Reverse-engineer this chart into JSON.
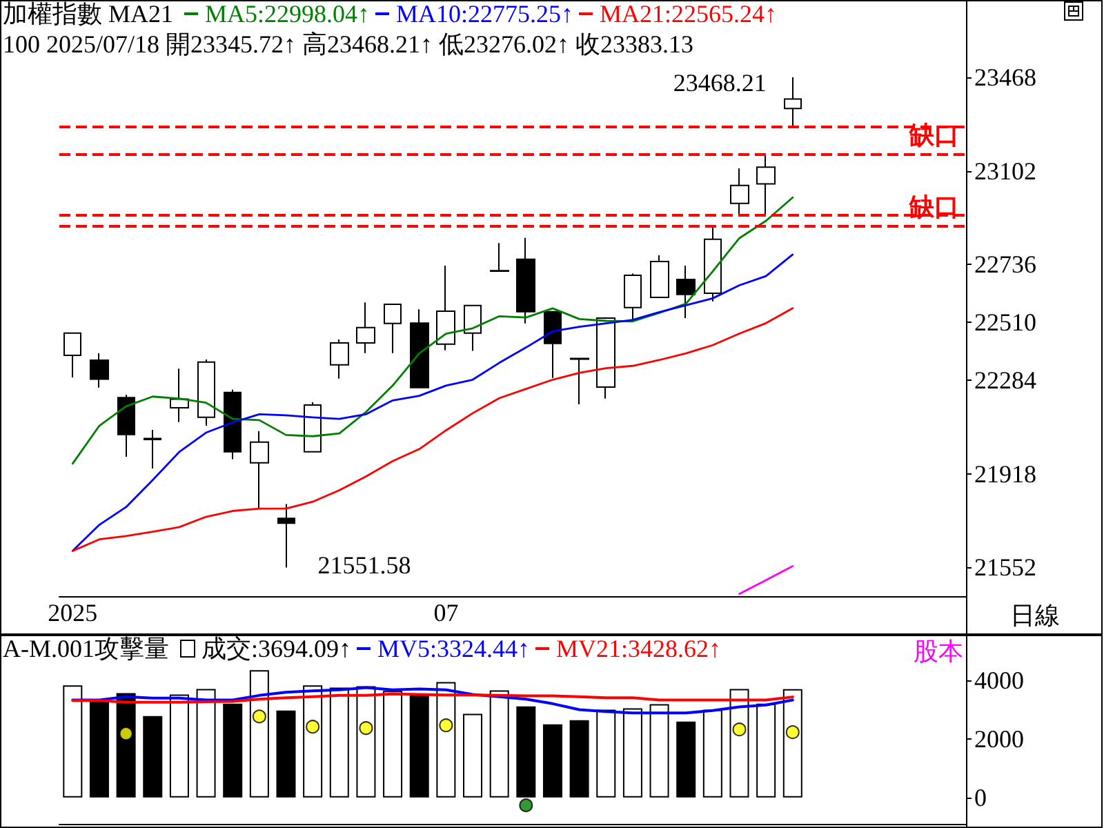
{
  "chart_data": [
    {
      "type": "candlestick",
      "title": "加權指數 MA21",
      "subtitle": "100 2025/07/18 開23345.72↑ 高23468.21↑ 低23276.02↑ 收23383.13",
      "categories": [
        "2025",
        null,
        null,
        null,
        null,
        null,
        null,
        null,
        null,
        null,
        null,
        null,
        null,
        null,
        "07",
        null,
        null,
        null,
        null,
        null,
        null,
        null,
        null,
        null,
        null,
        null,
        null,
        null
      ],
      "series": [
        {
          "ohlc": [
            [
              22381,
              22468,
              22295,
              22468
            ],
            [
              22362,
              22389,
              22255,
              22288
            ],
            [
              22216,
              22227,
              21985,
              22072
            ],
            [
              22056,
              22090,
              21939,
              22052
            ],
            [
              22176,
              22329,
              22120,
              22210
            ],
            [
              22139,
              22365,
              22106,
              22355
            ],
            [
              22236,
              22247,
              21975,
              22004
            ],
            [
              21961,
              22085,
              21779,
              22042
            ],
            [
              21744,
              21800,
              21551.58,
              21725
            ],
            [
              22004,
              22198,
              22004,
              22187
            ],
            [
              22344,
              22443,
              22290,
              22430
            ],
            [
              22430,
              22588,
              22390,
              22490
            ],
            [
              22506,
              22581,
              22390,
              22581
            ],
            [
              22507,
              22561,
              22255,
              22255
            ],
            [
              22425,
              22732,
              22401,
              22554
            ],
            [
              22468,
              22576,
              22399,
              22576
            ],
            [
              22710,
              22820,
              22710,
              22712
            ],
            [
              22757,
              22840,
              22506,
              22552
            ],
            [
              22552,
              22552,
              22293,
              22428
            ],
            [
              22369,
              22370,
              22190,
              22366
            ],
            [
              22257,
              22530,
              22212,
              22527
            ],
            [
              22568,
              22701,
              22514,
              22694
            ],
            [
              22608,
              22772,
              22608,
              22748
            ],
            [
              22678,
              22732,
              22527,
              22619
            ],
            [
              22624,
              22885,
              22592,
              22835
            ],
            [
              22975,
              23112,
              22928,
              23045
            ],
            [
              23051,
              23166,
              22928,
              23117
            ],
            [
              23345.72,
              23468.21,
              23276.02,
              23383.13
            ]
          ],
          "colors": [
            "#ffffff",
            "#000000",
            "#000000",
            "#000000",
            "#ffffff",
            "#ffffff",
            "#000000",
            "#ffffff",
            "#000000",
            "#ffffff",
            "#ffffff",
            "#ffffff",
            "#ffffff",
            "#000000",
            "#ffffff",
            "#ffffff",
            "#ffffff",
            "#000000",
            "#000000",
            "#000000",
            "#ffffff",
            "#ffffff",
            "#ffffff",
            "#000000",
            "#ffffff",
            "#ffffff",
            "#ffffff",
            "#ffffff"
          ]
        },
        {
          "type": "line",
          "name": "MA5:22998.04↑",
          "color": "#008000",
          "values": [
            21958,
            22106,
            22182,
            22220,
            22212,
            22196,
            22133,
            22128,
            22070,
            22065,
            22076,
            22160,
            22263,
            22389,
            22466,
            22487,
            22534,
            22529,
            22565,
            22523,
            22516,
            22514,
            22547,
            22583,
            22709,
            22839,
            22907,
            22998.04
          ]
        },
        {
          "type": "line",
          "name": "MA10:22775.25↑",
          "color": "#0000ff",
          "values": [
            21617,
            21719,
            21788,
            21894,
            22004,
            22079,
            22119,
            22151,
            22147,
            22139,
            22133,
            22151,
            22205,
            22223,
            22263,
            22286,
            22352,
            22412,
            22475,
            22493,
            22506,
            22520,
            22550,
            22577,
            22604,
            22655,
            22691,
            22775.25
          ]
        },
        {
          "type": "line",
          "name": "MA21:22565.24↑",
          "color": "#ff0000",
          "values": [
            21617,
            21662,
            21675,
            21692,
            21710,
            21750,
            21773,
            21782,
            21782,
            21809,
            21854,
            21908,
            21968,
            22015,
            22088,
            22155,
            22214,
            22250,
            22286,
            22313,
            22331,
            22340,
            22363,
            22389,
            22421,
            22466,
            22507,
            22565.24
          ]
        },
        {
          "type": "line",
          "color": "#ff00ff",
          "values": [
            null,
            null,
            null,
            null,
            null,
            null,
            null,
            null,
            null,
            null,
            null,
            null,
            null,
            null,
            null,
            null,
            null,
            null,
            null,
            null,
            null,
            null,
            null,
            null,
            null,
            21449,
            21503,
            21557
          ]
        }
      ],
      "ylim": [
        21440,
        23770
      ],
      "yticks": [
        21552,
        21918,
        22284,
        22510,
        22736,
        23102,
        23468
      ],
      "ref_lines": [
        {
          "axis": "y",
          "value": 22885,
          "label": "缺口",
          "color": "#ff0000",
          "line_style": "dashed"
        },
        {
          "axis": "y",
          "value": 22928,
          "label": null,
          "color": "#ff0000",
          "line_style": "dashed"
        },
        {
          "axis": "y",
          "value": 23166,
          "label": "缺口",
          "color": "#ff0000",
          "line_style": "dashed"
        },
        {
          "axis": "y",
          "value": 23276,
          "label": null,
          "color": "#ff0000",
          "line_style": "dashed"
        }
      ],
      "annotations": [
        "23468.21",
        "21551.58",
        "日線"
      ],
      "legend": "top",
      "grid": false,
      "marker": "none"
    },
    {
      "type": "bar",
      "title": "A-M.001攻擊量",
      "categories": [
        null,
        null,
        null,
        null,
        null,
        null,
        null,
        null,
        null,
        null,
        null,
        null,
        null,
        null,
        null,
        null,
        null,
        null,
        null,
        null,
        null,
        null,
        null,
        null,
        null,
        null,
        null,
        null
      ],
      "series": [
        {
          "name": "成交:3694.09↑",
          "values": [
            3826,
            3280,
            3562,
            2777,
            3515,
            3704,
            3200,
            4344,
            2965,
            3826,
            3751,
            3798,
            3638,
            3482,
            3939,
            2856,
            3656,
            3106,
            2494,
            2635,
            2996,
            3045,
            3186,
            2588,
            2996,
            3704,
            3200,
            3694.09
          ],
          "colors": [
            "#ffffff",
            "#000000",
            "#000000",
            "#000000",
            "#ffffff",
            "#ffffff",
            "#000000",
            "#ffffff",
            "#000000",
            "#ffffff",
            "#ffffff",
            "#ffffff",
            "#ffffff",
            "#000000",
            "#ffffff",
            "#ffffff",
            "#ffffff",
            "#000000",
            "#000000",
            "#000000",
            "#ffffff",
            "#ffffff",
            "#ffffff",
            "#000000",
            "#ffffff",
            "#ffffff",
            "#ffffff",
            "#ffffff"
          ]
        },
        {
          "type": "line",
          "name": "MV5:3324.44↑",
          "color": "#0000ff",
          "marker": "none",
          "values": [
            3327,
            3327,
            3435,
            3388,
            3388,
            3327,
            3327,
            3482,
            3591,
            3638,
            3671,
            3751,
            3671,
            3704,
            3671,
            3515,
            3435,
            3355,
            3200,
            2996,
            2932,
            2885,
            2885,
            2885,
            2965,
            3092,
            3153,
            3324.44
          ]
        },
        {
          "type": "line",
          "name": "MV21:3428.62↑",
          "color": "#ff0000",
          "marker": "none",
          "values": [
            3308,
            3308,
            3247,
            3247,
            3247,
            3264,
            3280,
            3355,
            3402,
            3435,
            3482,
            3482,
            3529,
            3515,
            3497,
            3497,
            3482,
            3468,
            3468,
            3435,
            3402,
            3402,
            3327,
            3327,
            3327,
            3327,
            3327,
            3428.62
          ]
        },
        {
          "type": "scatter",
          "color": "#ffff00",
          "values": [
            null,
            null,
            2179,
            null,
            null,
            null,
            null,
            2762,
            null,
            2414,
            null,
            2367,
            null,
            null,
            2461,
            null,
            null,
            null,
            null,
            null,
            null,
            null,
            null,
            null,
            null,
            2320,
            null,
            2226
          ]
        },
        {
          "type": "scatter",
          "color": "#008000",
          "values": [
            null,
            null,
            null,
            null,
            null,
            null,
            null,
            null,
            null,
            null,
            null,
            null,
            null,
            null,
            null,
            null,
            null,
            -268,
            null,
            null,
            null,
            null,
            null,
            null,
            null,
            null,
            null,
            null
          ]
        }
      ],
      "ylim": [
        -900,
        5550
      ],
      "yticks": [
        0,
        2000,
        4000
      ],
      "annotations": [
        "股本"
      ],
      "legend": "top left",
      "grid": false,
      "marker": "circle",
      "tick_labels": "y"
    }
  ]
}
